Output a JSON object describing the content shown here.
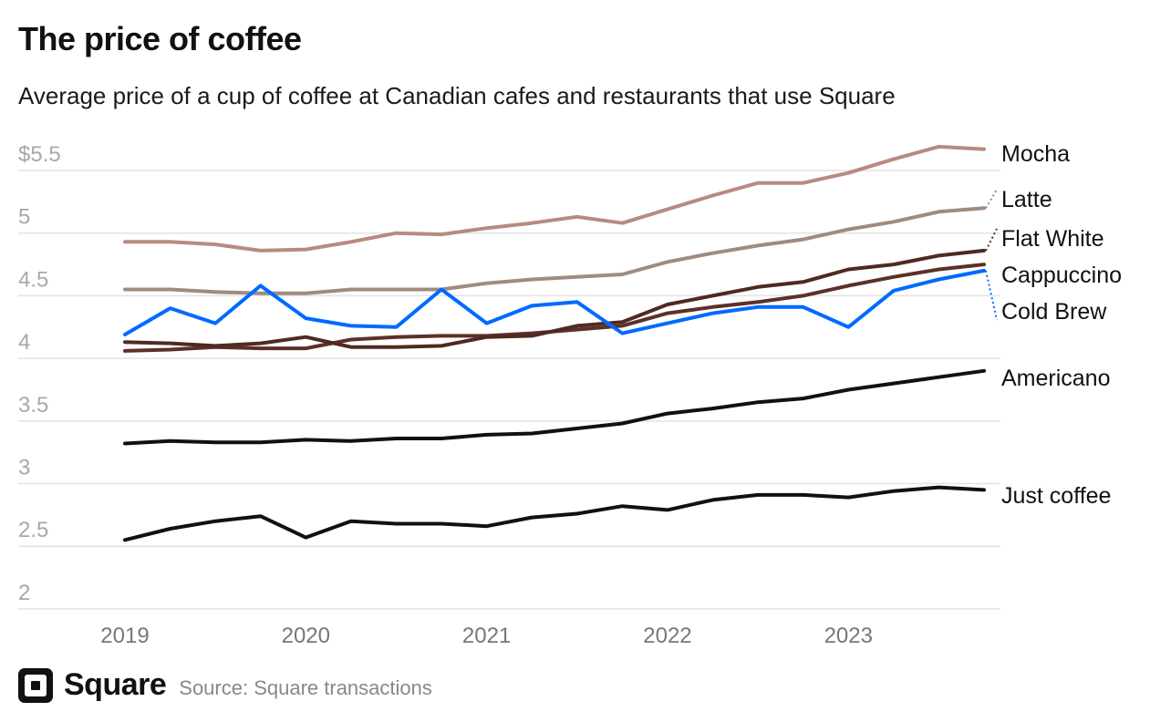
{
  "chart_data": {
    "type": "line",
    "title": "The price of coffee",
    "subtitle": "Average price of a cup of coffee at Canadian cafes and restaurants that use Square",
    "x_tick_labels": [
      "2019",
      "2020",
      "2021",
      "2022",
      "2023"
    ],
    "x_points_per_year": 4,
    "x_range": [
      "2019 Q1",
      "2023 Q4"
    ],
    "y_tick_labels": [
      "$5.5",
      "5",
      "4.5",
      "4",
      "3.5",
      "3",
      "2.5",
      "2"
    ],
    "y_ticks": [
      5.5,
      5,
      4.5,
      4,
      3.5,
      3,
      2.5,
      2
    ],
    "ylim": [
      2,
      5.5
    ],
    "grid": "horizontal",
    "legend": "direct labels at right",
    "series": [
      {
        "name": "Mocha",
        "color": "#b98a7f",
        "values": [
          4.93,
          4.93,
          4.91,
          4.86,
          4.87,
          4.93,
          5.0,
          4.99,
          5.04,
          5.08,
          5.13,
          5.08,
          5.19,
          5.3,
          5.4,
          5.4,
          5.48,
          5.59,
          5.69,
          5.67
        ]
      },
      {
        "name": "Latte",
        "color": "#a08b80",
        "values": [
          4.55,
          4.55,
          4.53,
          4.52,
          4.52,
          4.55,
          4.55,
          4.55,
          4.6,
          4.63,
          4.65,
          4.67,
          4.77,
          4.84,
          4.9,
          4.95,
          5.03,
          5.09,
          5.17,
          5.2
        ]
      },
      {
        "name": "Flat White",
        "color": "#4f2a22",
        "values": [
          4.13,
          4.12,
          4.1,
          4.12,
          4.17,
          4.09,
          4.09,
          4.1,
          4.17,
          4.18,
          4.26,
          4.29,
          4.43,
          4.5,
          4.57,
          4.61,
          4.71,
          4.75,
          4.82,
          4.86
        ]
      },
      {
        "name": "Cappuccino",
        "color": "#5c3028",
        "values": [
          4.06,
          4.07,
          4.09,
          4.08,
          4.08,
          4.15,
          4.17,
          4.18,
          4.18,
          4.2,
          4.23,
          4.26,
          4.36,
          4.41,
          4.45,
          4.5,
          4.58,
          4.65,
          4.71,
          4.75
        ]
      },
      {
        "name": "Cold Brew",
        "color": "#006aff",
        "values": [
          4.19,
          4.4,
          4.28,
          4.58,
          4.32,
          4.26,
          4.25,
          4.55,
          4.28,
          4.42,
          4.45,
          4.2,
          4.28,
          4.36,
          4.41,
          4.41,
          4.25,
          4.54,
          4.63,
          4.7
        ]
      },
      {
        "name": "Americano",
        "color": "#111111",
        "values": [
          3.32,
          3.34,
          3.33,
          3.33,
          3.35,
          3.34,
          3.36,
          3.36,
          3.39,
          3.4,
          3.44,
          3.48,
          3.56,
          3.6,
          3.65,
          3.68,
          3.75,
          3.8,
          3.85,
          3.9
        ]
      },
      {
        "name": "Just coffee",
        "color": "#111111",
        "values": [
          2.55,
          2.64,
          2.7,
          2.74,
          2.57,
          2.7,
          2.68,
          2.68,
          2.66,
          2.73,
          2.76,
          2.82,
          2.79,
          2.87,
          2.91,
          2.91,
          2.89,
          2.94,
          2.97,
          2.95
        ]
      }
    ]
  },
  "footer": {
    "brand": "Square",
    "source": "Source: Square transactions"
  }
}
